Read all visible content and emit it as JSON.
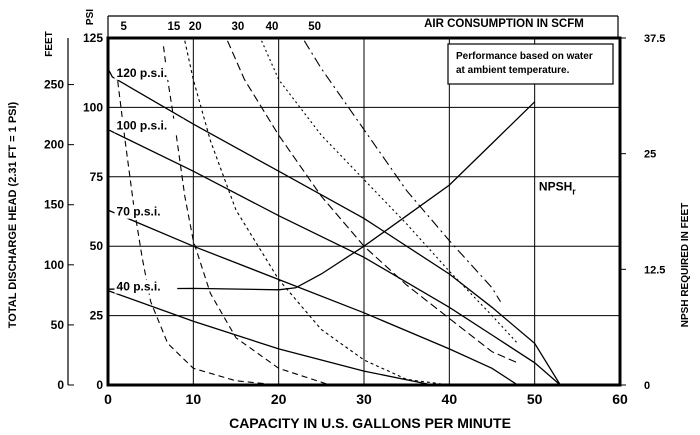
{
  "chart_data": {
    "type": "line",
    "title": "",
    "xlabel": "CAPACITY IN U.S. GALLONS PER MINUTE",
    "ylabel_left_feet": "TOTAL DISCHARGE HEAD (2.31 FT = 1 PSI)",
    "ylabel_left_feet_unit": "FEET",
    "ylabel_left_psi_unit": "PSI",
    "ylabel_right": "NPSH REQUIRED IN FEET",
    "top_axis_label": "AIR CONSUMPTION IN SCFM",
    "xlim": [
      0,
      60
    ],
    "ylim_psi": [
      0,
      125
    ],
    "x_ticks": [
      "0",
      "10",
      "20",
      "30",
      "40",
      "50",
      "60"
    ],
    "x_tick_values": [
      0,
      10,
      20,
      30,
      40,
      50,
      60
    ],
    "feet_ticks": [
      "0",
      "50",
      "100",
      "150",
      "200",
      "250"
    ],
    "feet_tick_values": [
      0,
      50,
      100,
      150,
      200,
      250
    ],
    "psi_ticks": [
      "0",
      "25",
      "50",
      "75",
      "100",
      "125"
    ],
    "psi_tick_values": [
      0,
      25,
      50,
      75,
      100,
      125
    ],
    "npsh_ticks": [
      "0",
      "12.5",
      "25",
      "37.5"
    ],
    "npsh_tick_values": [
      0,
      12.5,
      25,
      37.5
    ],
    "npsh_range": [
      0,
      37.5
    ],
    "scfm_ticks": [
      "5",
      "15",
      "20",
      "30",
      "40",
      "50"
    ],
    "scfm_tick_x": [
      1,
      6.5,
      9,
      14,
      18,
      23
    ],
    "annotation": [
      "Performance based on water",
      "at ambient temperature."
    ],
    "grid": true,
    "series": [
      {
        "name": "120 p.s.i.",
        "label_xy": [
          1,
          111
        ],
        "points": [
          [
            0,
            114
          ],
          [
            0.5,
            111
          ],
          [
            10,
            94
          ],
          [
            20,
            77
          ],
          [
            30,
            60
          ],
          [
            40,
            40
          ],
          [
            45,
            28
          ],
          [
            50,
            15
          ],
          [
            53,
            0
          ]
        ]
      },
      {
        "name": "100 p.s.i.",
        "label_xy": [
          1,
          92
        ],
        "points": [
          [
            0,
            92
          ],
          [
            10,
            77
          ],
          [
            20,
            61
          ],
          [
            30,
            46
          ],
          [
            40,
            28
          ],
          [
            45,
            18
          ],
          [
            50,
            8
          ],
          [
            53,
            0
          ]
        ]
      },
      {
        "name": "70 p.s.i.",
        "label_xy": [
          1,
          61
        ],
        "points": [
          [
            0,
            63
          ],
          [
            10,
            50
          ],
          [
            20,
            38
          ],
          [
            30,
            26
          ],
          [
            40,
            13
          ],
          [
            45,
            6
          ],
          [
            48,
            0
          ]
        ]
      },
      {
        "name": "40 p.s.i.",
        "label_xy": [
          1,
          34
        ],
        "points": [
          [
            0,
            34
          ],
          [
            10,
            23
          ],
          [
            20,
            13
          ],
          [
            30,
            5
          ],
          [
            38,
            0
          ]
        ]
      },
      {
        "name": "NPSHr",
        "label_xy": [
          50.5,
          70
        ],
        "points": [
          [
            0,
            34.5
          ],
          [
            10,
            34.8
          ],
          [
            20,
            34.3
          ],
          [
            22,
            35
          ],
          [
            25,
            40
          ],
          [
            30,
            50
          ],
          [
            35,
            61
          ],
          [
            40,
            72
          ],
          [
            45,
            87
          ],
          [
            50,
            102
          ]
        ]
      }
    ],
    "air_curves": [
      {
        "scfm": "5",
        "points": [
          [
            1,
            113
          ],
          [
            2,
            88
          ],
          [
            3,
            65
          ],
          [
            4,
            46
          ],
          [
            5,
            30
          ],
          [
            7,
            15
          ],
          [
            10,
            6
          ],
          [
            15,
            1.5
          ],
          [
            20,
            0
          ]
        ]
      },
      {
        "scfm": "15",
        "points": [
          [
            6.5,
            122
          ],
          [
            7,
            110
          ],
          [
            8,
            90
          ],
          [
            9,
            68
          ],
          [
            10,
            52
          ],
          [
            12,
            33
          ],
          [
            15,
            17
          ],
          [
            20,
            6
          ],
          [
            25,
            1
          ],
          [
            26,
            0
          ]
        ]
      },
      {
        "scfm": "20",
        "points": [
          [
            9,
            124
          ],
          [
            10,
            110
          ],
          [
            12,
            88
          ],
          [
            15,
            63
          ],
          [
            20,
            38
          ],
          [
            25,
            20
          ],
          [
            30,
            9
          ],
          [
            35,
            2
          ],
          [
            40,
            0
          ]
        ]
      },
      {
        "scfm": "30",
        "points": [
          [
            14,
            124
          ],
          [
            16,
            110
          ],
          [
            20,
            90
          ],
          [
            25,
            68
          ],
          [
            30,
            50
          ],
          [
            35,
            36
          ],
          [
            40,
            24
          ],
          [
            45,
            12
          ],
          [
            48,
            8
          ]
        ]
      },
      {
        "scfm": "40",
        "points": [
          [
            18,
            124
          ],
          [
            20,
            110
          ],
          [
            25,
            90
          ],
          [
            30,
            74
          ],
          [
            35,
            58
          ],
          [
            40,
            41
          ],
          [
            45,
            25
          ],
          [
            48,
            15
          ]
        ]
      },
      {
        "scfm": "50",
        "points": [
          [
            23,
            124
          ],
          [
            25,
            114
          ],
          [
            30,
            92
          ],
          [
            35,
            70
          ],
          [
            40,
            52
          ],
          [
            45,
            35
          ],
          [
            46,
            30
          ]
        ]
      }
    ]
  }
}
